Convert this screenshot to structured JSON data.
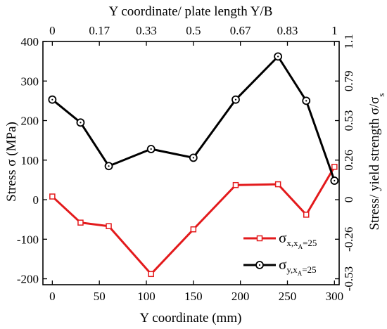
{
  "chart_data": {
    "type": "line",
    "xlabel": "Y coordinate (mm)",
    "ylabel": "Stress σ (MPa)",
    "x2label": "Y coordinate/ plate length Y/B",
    "y2label": "Stress/ yield strength σ/σ",
    "y2label_sub": "s",
    "xlim": [
      -10,
      305
    ],
    "ylim": [
      -215,
      400
    ],
    "x_ticks": [
      0,
      50,
      100,
      150,
      200,
      250,
      300
    ],
    "y_ticks": [
      -200,
      -100,
      0,
      100,
      200,
      300,
      400
    ],
    "x2_ticks": [
      {
        "at": 0,
        "label": "0"
      },
      {
        "at": 50,
        "label": "0.17"
      },
      {
        "at": 100,
        "label": "0.33"
      },
      {
        "at": 150,
        "label": "0.5"
      },
      {
        "at": 200,
        "label": "0.67"
      },
      {
        "at": 250,
        "label": "0.83"
      },
      {
        "at": 300,
        "label": "1"
      }
    ],
    "y2_ticks": [
      {
        "at": -200,
        "label": "-0.53"
      },
      {
        "at": -100,
        "label": "-0.26"
      },
      {
        "at": 0,
        "label": "0"
      },
      {
        "at": 100,
        "label": "0.26"
      },
      {
        "at": 200,
        "label": "0.53"
      },
      {
        "at": 300,
        "label": "0.79"
      },
      {
        "at": 400,
        "label": "1.1"
      }
    ],
    "grid": false,
    "legend_position": "bottom-right",
    "series": [
      {
        "legend_main": "σ",
        "legend_sub": "x,x",
        "legend_subsub": "A",
        "legend_tail": "=25",
        "color": "#e31a1c",
        "marker": "square",
        "x": [
          0,
          30,
          60,
          105,
          150,
          195,
          240,
          270,
          300
        ],
        "y": [
          8,
          -58,
          -67,
          -188,
          -75,
          37,
          39,
          -38,
          83
        ]
      },
      {
        "legend_main": "σ",
        "legend_sub": "y,x",
        "legend_subsub": "A",
        "legend_tail": "=25",
        "color": "#000000",
        "marker": "circle",
        "x": [
          0,
          30,
          60,
          105,
          150,
          195,
          240,
          270,
          300
        ],
        "y": [
          253,
          195,
          85,
          128,
          106,
          253,
          362,
          250,
          48
        ]
      }
    ]
  }
}
